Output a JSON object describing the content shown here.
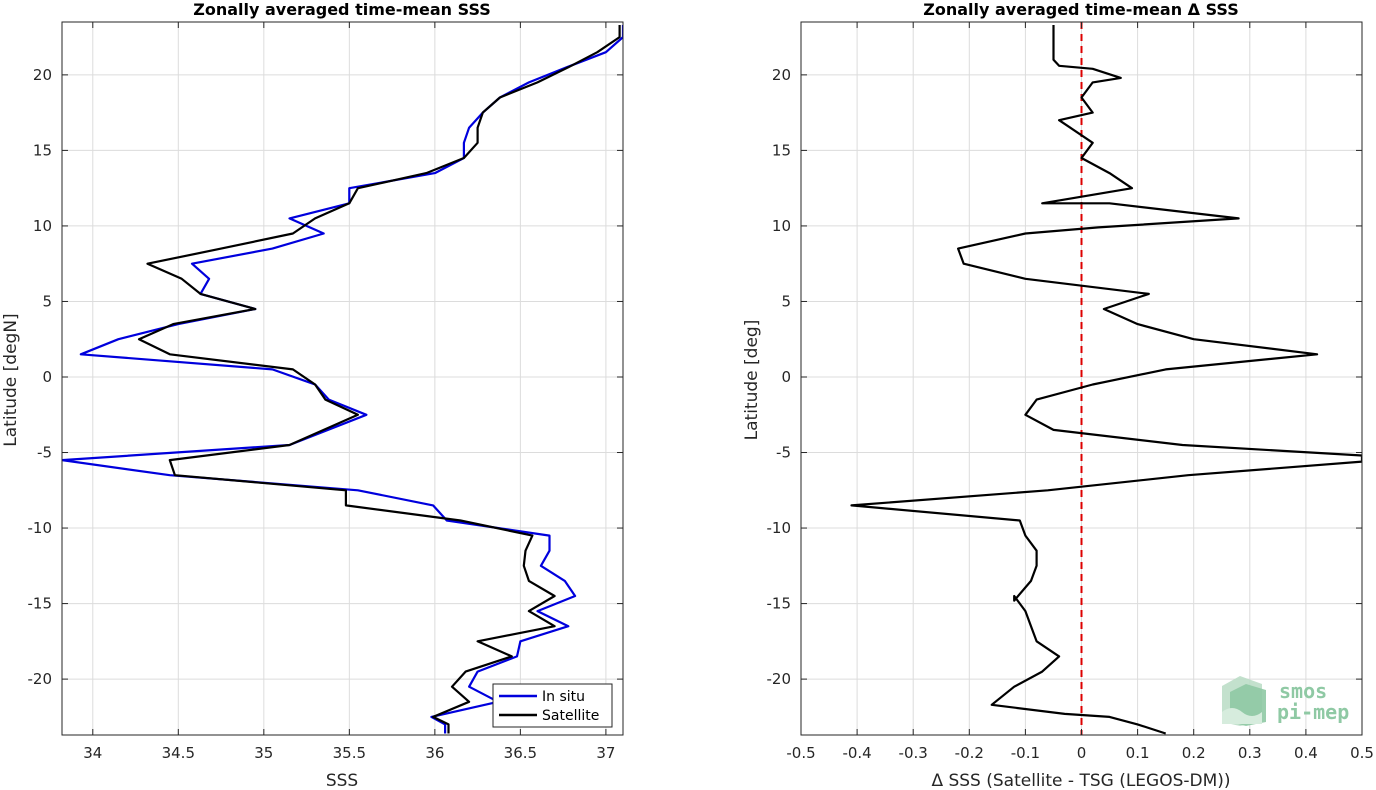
{
  "chart_data": [
    {
      "type": "line",
      "title": "Zonally averaged time-mean SSS",
      "xlabel": "SSS",
      "ylabel": "Latitude [degN]",
      "xlim": [
        33.82,
        37.1
      ],
      "ylim": [
        -23.7,
        23.5
      ],
      "xticks": [
        34,
        34.5,
        35,
        35.5,
        36,
        36.5,
        37
      ],
      "yticks": [
        -20,
        -15,
        -10,
        -5,
        0,
        5,
        10,
        15,
        20
      ],
      "grid": true,
      "legend_placement": "bottom-right",
      "series": [
        {
          "name": "In situ",
          "color": "#0000dd",
          "points": [
            [
              36.06,
              -23.6
            ],
            [
              36.06,
              -23.0
            ],
            [
              35.98,
              -22.5
            ],
            [
              36.37,
              -21.5
            ],
            [
              36.2,
              -20.5
            ],
            [
              36.25,
              -19.5
            ],
            [
              36.48,
              -18.5
            ],
            [
              36.5,
              -17.5
            ],
            [
              36.78,
              -16.5
            ],
            [
              36.6,
              -15.5
            ],
            [
              36.82,
              -14.5
            ],
            [
              36.76,
              -13.5
            ],
            [
              36.62,
              -12.5
            ],
            [
              36.67,
              -11.5
            ],
            [
              36.67,
              -10.5
            ],
            [
              36.07,
              -9.5
            ],
            [
              35.99,
              -8.5
            ],
            [
              35.55,
              -7.5
            ],
            [
              34.45,
              -6.5
            ],
            [
              33.82,
              -5.5
            ],
            [
              35.15,
              -4.5
            ],
            [
              35.6,
              -2.5
            ],
            [
              35.38,
              -1.5
            ],
            [
              35.3,
              -0.5
            ],
            [
              35.05,
              0.5
            ],
            [
              33.93,
              1.5
            ],
            [
              34.15,
              2.5
            ],
            [
              34.5,
              3.5
            ],
            [
              34.95,
              4.5
            ],
            [
              34.63,
              5.5
            ],
            [
              34.68,
              6.5
            ],
            [
              34.58,
              7.5
            ],
            [
              35.05,
              8.5
            ],
            [
              35.35,
              9.5
            ],
            [
              35.15,
              10.5
            ],
            [
              35.5,
              11.5
            ],
            [
              35.5,
              12.5
            ],
            [
              36.0,
              13.5
            ],
            [
              36.17,
              14.5
            ],
            [
              36.17,
              15.5
            ],
            [
              36.2,
              16.5
            ],
            [
              36.28,
              17.5
            ],
            [
              36.38,
              18.5
            ],
            [
              36.55,
              19.5
            ],
            [
              36.77,
              20.5
            ],
            [
              37.0,
              21.5
            ],
            [
              37.1,
              22.5
            ],
            [
              37.1,
              23.3
            ]
          ]
        },
        {
          "name": "Satellite",
          "color": "#000000",
          "points": [
            [
              36.08,
              -23.6
            ],
            [
              36.08,
              -23.0
            ],
            [
              35.99,
              -22.5
            ],
            [
              36.2,
              -21.5
            ],
            [
              36.1,
              -20.5
            ],
            [
              36.18,
              -19.5
            ],
            [
              36.45,
              -18.5
            ],
            [
              36.25,
              -17.5
            ],
            [
              36.7,
              -16.5
            ],
            [
              36.55,
              -15.5
            ],
            [
              36.7,
              -14.5
            ],
            [
              36.55,
              -13.5
            ],
            [
              36.52,
              -12.5
            ],
            [
              36.53,
              -11.5
            ],
            [
              36.57,
              -10.5
            ],
            [
              36.15,
              -9.5
            ],
            [
              35.48,
              -8.5
            ],
            [
              35.48,
              -7.5
            ],
            [
              34.48,
              -6.5
            ],
            [
              34.45,
              -5.5
            ],
            [
              35.15,
              -4.5
            ],
            [
              35.55,
              -2.5
            ],
            [
              35.36,
              -1.5
            ],
            [
              35.3,
              -0.5
            ],
            [
              35.17,
              0.5
            ],
            [
              34.45,
              1.5
            ],
            [
              34.27,
              2.5
            ],
            [
              34.47,
              3.5
            ],
            [
              34.95,
              4.5
            ],
            [
              34.63,
              5.5
            ],
            [
              34.52,
              6.5
            ],
            [
              34.32,
              7.5
            ],
            [
              34.75,
              8.5
            ],
            [
              35.17,
              9.5
            ],
            [
              35.3,
              10.5
            ],
            [
              35.5,
              11.5
            ],
            [
              35.55,
              12.5
            ],
            [
              35.95,
              13.5
            ],
            [
              36.17,
              14.5
            ],
            [
              36.25,
              15.5
            ],
            [
              36.25,
              16.5
            ],
            [
              36.28,
              17.5
            ],
            [
              36.38,
              18.5
            ],
            [
              36.6,
              19.5
            ],
            [
              36.78,
              20.5
            ],
            [
              36.95,
              21.5
            ],
            [
              37.08,
              22.5
            ],
            [
              37.08,
              23.3
            ]
          ]
        }
      ]
    },
    {
      "type": "line",
      "title": "Zonally averaged time-mean Δ SSS",
      "xlabel": "Δ SSS (Satellite - TSG (LEGOS-DM))",
      "ylabel": "Latitude [deg]",
      "xlim": [
        -0.5,
        0.5
      ],
      "ylim": [
        -23.7,
        23.5
      ],
      "xticks": [
        -0.5,
        -0.4,
        -0.3,
        -0.2,
        -0.1,
        0,
        0.1,
        0.2,
        0.3,
        0.4,
        0.5
      ],
      "yticks": [
        -20,
        -15,
        -10,
        -5,
        0,
        5,
        10,
        15,
        20
      ],
      "grid": true,
      "reference_line": {
        "x": 0,
        "color": "#dd0000",
        "style": "dashed"
      },
      "series": [
        {
          "color": "#000000",
          "points": [
            [
              0.15,
              -23.6
            ],
            [
              0.1,
              -23.0
            ],
            [
              0.05,
              -22.5
            ],
            [
              -0.03,
              -22.3
            ],
            [
              -0.16,
              -21.7
            ],
            [
              -0.12,
              -20.5
            ],
            [
              -0.07,
              -19.5
            ],
            [
              -0.04,
              -18.5
            ],
            [
              -0.08,
              -17.5
            ],
            [
              -0.09,
              -16.5
            ],
            [
              -0.1,
              -15.5
            ],
            [
              -0.12,
              -14.5
            ],
            [
              -0.12,
              -14.8
            ],
            [
              -0.09,
              -13.5
            ],
            [
              -0.08,
              -12.5
            ],
            [
              -0.08,
              -11.5
            ],
            [
              -0.1,
              -10.5
            ],
            [
              -0.11,
              -9.5
            ],
            [
              -0.41,
              -8.5
            ],
            [
              -0.06,
              -7.5
            ],
            [
              0.19,
              -6.5
            ],
            [
              0.5,
              -5.6
            ],
            [
              0.5,
              -5.2
            ],
            [
              0.18,
              -4.5
            ],
            [
              -0.05,
              -3.5
            ],
            [
              -0.1,
              -2.5
            ],
            [
              -0.08,
              -1.5
            ],
            [
              0.02,
              -0.5
            ],
            [
              0.15,
              0.5
            ],
            [
              0.42,
              1.5
            ],
            [
              0.2,
              2.5
            ],
            [
              0.1,
              3.5
            ],
            [
              0.04,
              4.5
            ],
            [
              0.12,
              5.5
            ],
            [
              -0.1,
              6.5
            ],
            [
              -0.21,
              7.5
            ],
            [
              -0.22,
              8.5
            ],
            [
              -0.1,
              9.5
            ],
            [
              0.03,
              9.9
            ],
            [
              0.28,
              10.5
            ],
            [
              0.05,
              11.5
            ],
            [
              -0.07,
              11.5
            ],
            [
              0.09,
              12.5
            ],
            [
              0.05,
              13.5
            ],
            [
              0.0,
              14.5
            ],
            [
              0.02,
              15.5
            ],
            [
              -0.02,
              16.5
            ],
            [
              -0.04,
              17.0
            ],
            [
              0.02,
              17.5
            ],
            [
              0.0,
              18.5
            ],
            [
              0.02,
              19.5
            ],
            [
              0.07,
              19.8
            ],
            [
              0.02,
              20.4
            ],
            [
              -0.04,
              20.6
            ],
            [
              -0.05,
              21.0
            ],
            [
              -0.05,
              22.0
            ],
            [
              -0.05,
              23.3
            ]
          ]
        }
      ]
    }
  ],
  "legend": {
    "entries": [
      "In situ",
      "Satellite"
    ]
  },
  "logo": {
    "line1": "smos",
    "line2": "pi-mep"
  }
}
